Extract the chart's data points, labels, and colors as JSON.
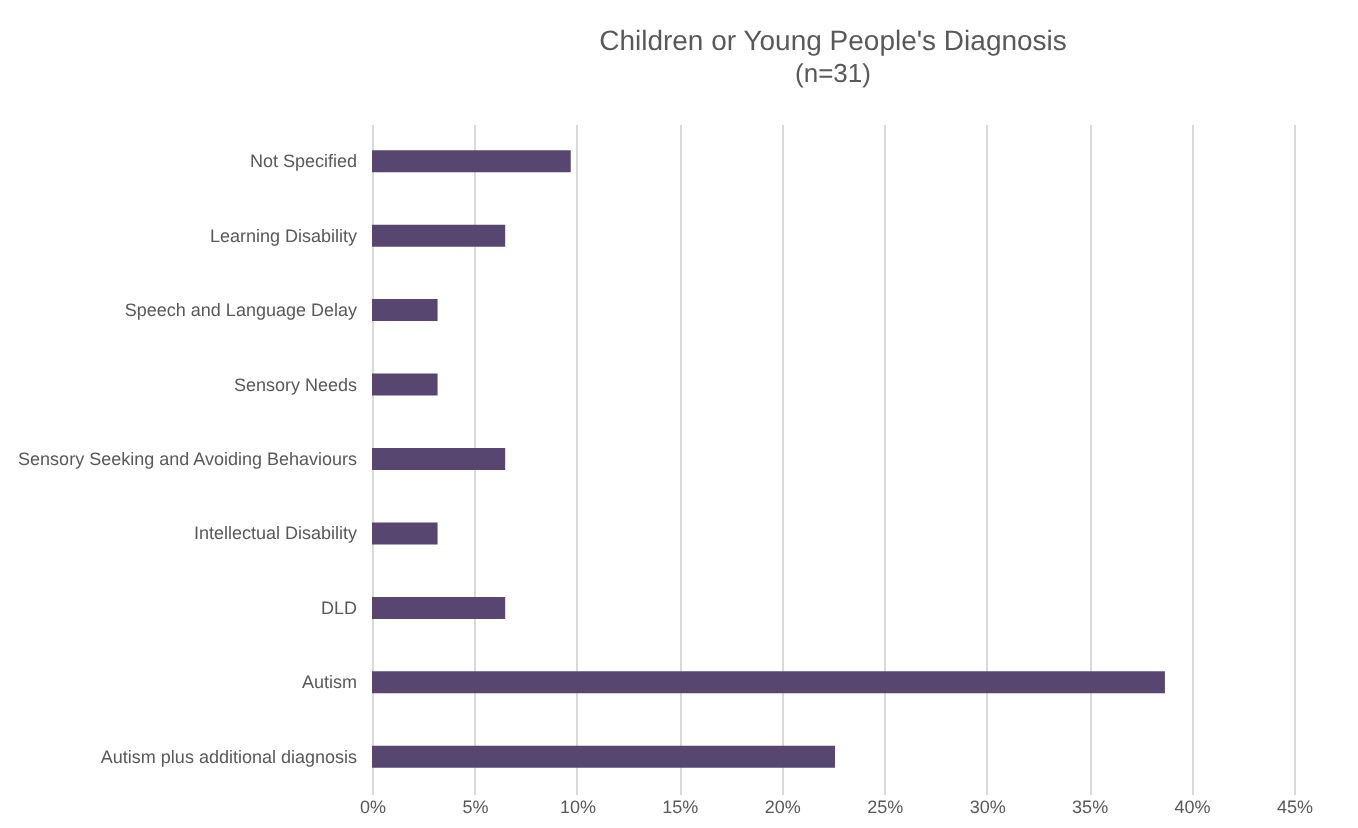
{
  "chart_data": {
    "type": "bar",
    "orientation": "horizontal",
    "title": "Children or Young People's Diagnosis",
    "subtitle": "(n=31)",
    "categories": [
      "Not Specified",
      "Learning Disability",
      "Speech and Language Delay",
      "Sensory Needs",
      "Sensory Seeking and Avoiding Behaviours",
      "Intellectual Disability",
      "DLD",
      "Autism",
      "Autism plus additional diagnosis"
    ],
    "values": [
      9.7,
      6.5,
      3.2,
      3.2,
      6.5,
      3.2,
      6.5,
      38.7,
      22.6
    ],
    "color": "#574770",
    "xlim": [
      0,
      45
    ],
    "xticks": [
      {
        "value": 0,
        "label": "0%"
      },
      {
        "value": 5,
        "label": "5%"
      },
      {
        "value": 10,
        "label": "10%"
      },
      {
        "value": 15,
        "label": "15%"
      },
      {
        "value": 20,
        "label": "20%"
      },
      {
        "value": 25,
        "label": "25%"
      },
      {
        "value": 30,
        "label": "30%"
      },
      {
        "value": 35,
        "label": "35%"
      },
      {
        "value": 40,
        "label": "40%"
      },
      {
        "value": 45,
        "label": "45%"
      }
    ],
    "grid": "x"
  }
}
